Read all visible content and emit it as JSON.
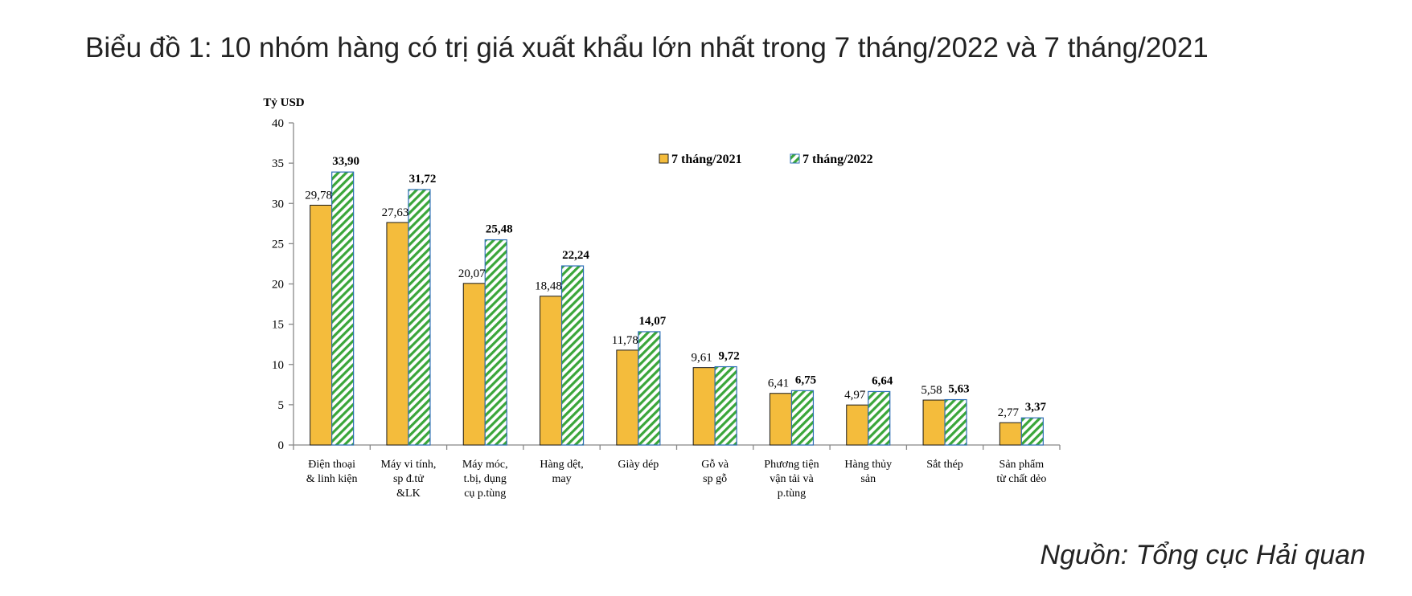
{
  "title": "Biểu đồ 1: 10 nhóm hàng có trị giá xuất khẩu lớn nhất trong 7 tháng/2022 và 7 tháng/2021",
  "source": "Nguồn: Tổng cục Hải quan",
  "chart_data": {
    "type": "bar",
    "ylabel": "Tỷ USD",
    "ylim": [
      0,
      40
    ],
    "yticks": [
      0,
      5,
      10,
      15,
      20,
      25,
      30,
      35,
      40
    ],
    "grid": false,
    "legend_position": "top-right",
    "categories": [
      [
        "Điện thoại",
        "& linh kiện"
      ],
      [
        "Máy vi tính,",
        "sp đ.tử",
        "&LK"
      ],
      [
        "Máy móc,",
        "t.bị, dụng",
        "cụ p.tùng"
      ],
      [
        "Hàng dệt,",
        "may"
      ],
      [
        "Giày dép"
      ],
      [
        "Gỗ và",
        "sp gỗ"
      ],
      [
        "Phương tiện",
        "vận tải và",
        "p.tùng"
      ],
      [
        "Hàng thủy",
        "sản"
      ],
      [
        "Sắt thép"
      ],
      [
        "Sản phẩm",
        "từ chất dẻo"
      ]
    ],
    "series": [
      {
        "name": "7 tháng/2021",
        "color": "#f4bc3c",
        "pattern": "solid",
        "values": [
          29.78,
          27.63,
          20.07,
          18.48,
          11.78,
          9.61,
          6.41,
          4.97,
          5.58,
          2.77
        ],
        "labels": [
          "29,78",
          "27,63",
          "20,07",
          "18,48",
          "11,78",
          "9,61",
          "6,41",
          "4,97",
          "5,58",
          "2,77"
        ]
      },
      {
        "name": "7 tháng/2022",
        "color": "#3aa63a",
        "pattern": "diagonal-stripes",
        "values": [
          33.9,
          31.72,
          25.48,
          22.24,
          14.07,
          9.72,
          6.75,
          6.64,
          5.63,
          3.37
        ],
        "labels": [
          "33,90",
          "31,72",
          "25,48",
          "22,24",
          "14,07",
          "9,72",
          "6,75",
          "6,64",
          "5,63",
          "3,37"
        ]
      }
    ]
  }
}
